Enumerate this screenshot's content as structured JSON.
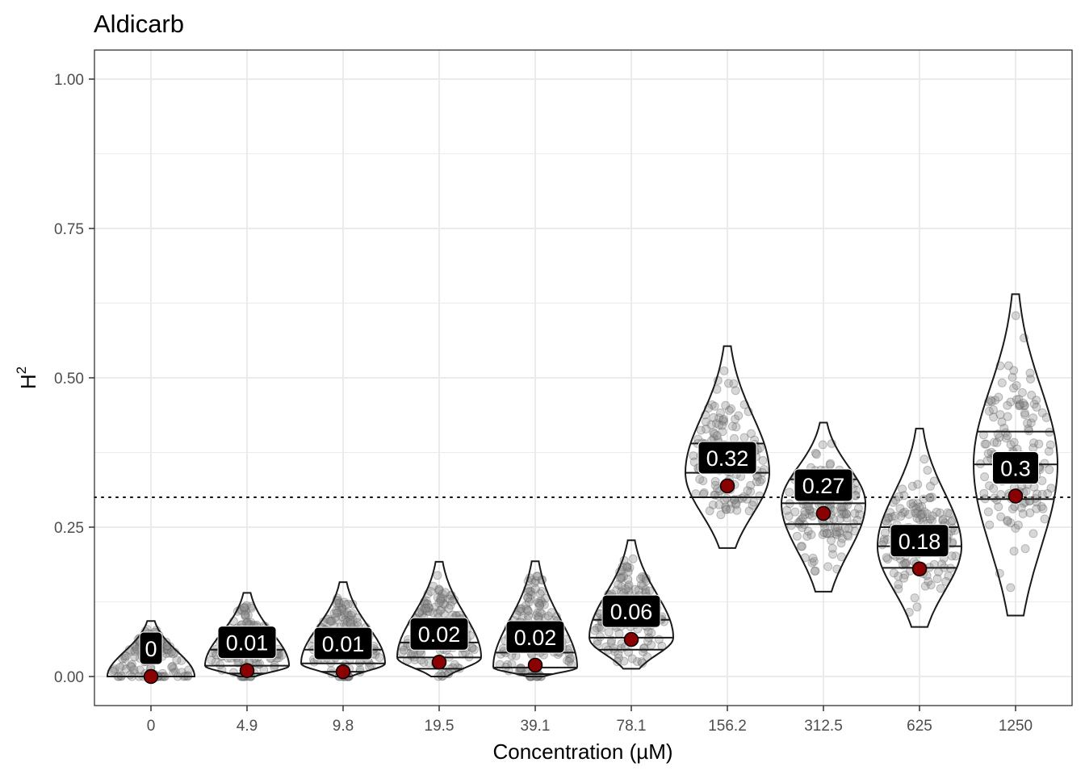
{
  "chart_data": {
    "type": "violin",
    "title": "Aldicarb",
    "xlabel": "Concentration (µM)",
    "ylabel": "H",
    "ylabel_superscript": "2",
    "categories": [
      "0",
      "4.9",
      "9.8",
      "19.5",
      "39.1",
      "78.1",
      "156.2",
      "312.5",
      "625",
      "1250"
    ],
    "ylim": [
      -0.05,
      1.05
    ],
    "yticks": [
      0.0,
      0.25,
      0.5,
      0.75,
      1.0
    ],
    "ytick_labels": [
      "0.00",
      "0.25",
      "0.50",
      "0.75",
      "1.00"
    ],
    "reference_line": 0.3,
    "grid": true,
    "groups": [
      {
        "category": "0",
        "mean": 0.0,
        "label": "0",
        "min": 0.0,
        "max": 0.093,
        "q1": 0.0,
        "median": 0.0,
        "q3": 0.0
      },
      {
        "category": "4.9",
        "mean": 0.01,
        "label": "0.01",
        "min": 0.0,
        "max": 0.14,
        "q1": 0.005,
        "median": 0.018,
        "q3": 0.045
      },
      {
        "category": "9.8",
        "mean": 0.008,
        "label": "0.01",
        "min": 0.0,
        "max": 0.158,
        "q1": 0.008,
        "median": 0.022,
        "q3": 0.045
      },
      {
        "category": "19.5",
        "mean": 0.024,
        "label": "0.02",
        "min": 0.0,
        "max": 0.192,
        "q1": 0.013,
        "median": 0.032,
        "q3": 0.057
      },
      {
        "category": "39.1",
        "mean": 0.019,
        "label": "0.02",
        "min": 0.0,
        "max": 0.193,
        "q1": 0.004,
        "median": 0.015,
        "q3": 0.04
      },
      {
        "category": "78.1",
        "mean": 0.062,
        "label": "0.06",
        "min": 0.013,
        "max": 0.228,
        "q1": 0.045,
        "median": 0.065,
        "q3": 0.095
      },
      {
        "category": "156.2",
        "mean": 0.319,
        "label": "0.32",
        "min": 0.215,
        "max": 0.553,
        "q1": 0.3,
        "median": 0.341,
        "q3": 0.39
      },
      {
        "category": "312.5",
        "mean": 0.273,
        "label": "0.27",
        "min": 0.142,
        "max": 0.425,
        "q1": 0.255,
        "median": 0.29,
        "q3": 0.33
      },
      {
        "category": "625",
        "mean": 0.18,
        "label": "0.18",
        "min": 0.083,
        "max": 0.415,
        "q1": 0.182,
        "median": 0.218,
        "q3": 0.25
      },
      {
        "category": "1250",
        "mean": 0.302,
        "label": "0.3",
        "min": 0.102,
        "max": 0.64,
        "q1": 0.297,
        "median": 0.355,
        "q3": 0.41
      }
    ],
    "colors": {
      "points": "#8c8c8c",
      "mean_point": "#8b0000",
      "violin_outline": "#1a1a1a",
      "label_bg": "#000000",
      "label_text": "#ffffff",
      "grid": "#ebebeb",
      "panel_border": "#333333"
    }
  }
}
